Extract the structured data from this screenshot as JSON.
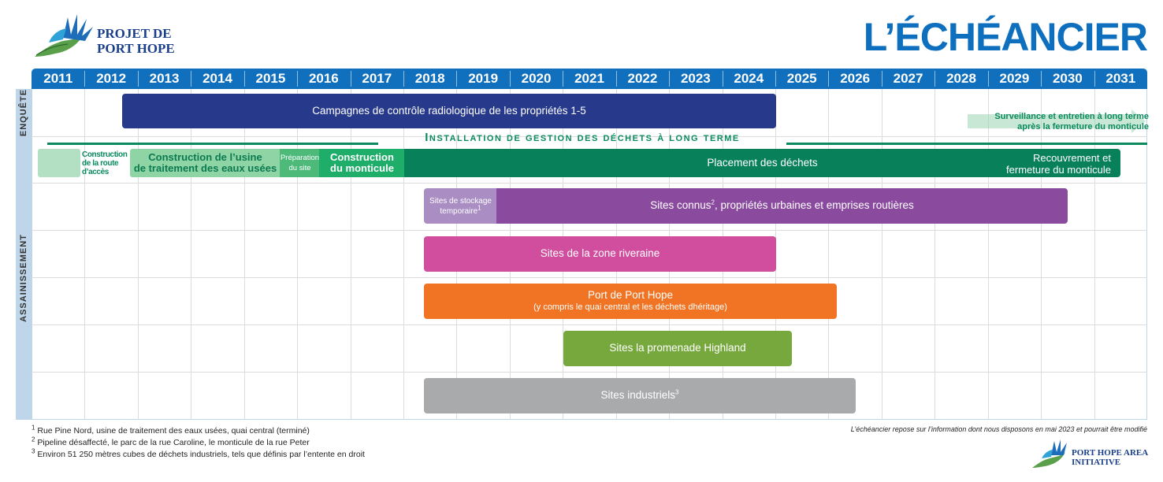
{
  "header": {
    "title": "L’ÉCHÉANCIER",
    "logo_line1": "PROJET DE",
    "logo_line2": "PORT HOPE"
  },
  "chart_data": {
    "type": "table",
    "years": [
      "2011",
      "2012",
      "2013",
      "2014",
      "2015",
      "2016",
      "2017",
      "2018",
      "2019",
      "2020",
      "2021",
      "2022",
      "2023",
      "2024",
      "2025",
      "2026",
      "2027",
      "2028",
      "2029",
      "2030",
      "2031"
    ],
    "sections": [
      "ENQUÊTE",
      "ASSAINISSEMENT"
    ],
    "enquete": {
      "campaign_label": "Campagnes de contrôle radiologique de les propriétés 1-5",
      "surveillance_line1": "Surveillance et entretien à long terme",
      "surveillance_line2": "après la fermeture du monticule"
    },
    "facility": {
      "title": "Installation de gestion des déchets à long terme",
      "road_line1": "Construction",
      "road_line2": "de la route",
      "road_line3": "d’accès",
      "plant_line1": "Construction de l’usine",
      "plant_line2": "de traitement des eaux usées",
      "prep_line1": "Préparation",
      "prep_line2": "du site",
      "mound_line1": "Construction",
      "mound_line2": "du monticule",
      "placement": "Placement des déchets",
      "cover_line1": "Recouvrement et",
      "cover_line2": "fermeture du monticule"
    },
    "cleanup": {
      "temp_line1": "Sites de stockage",
      "temp_line2": "temporaire",
      "temp_sup": "1",
      "known_a": "Sites connus",
      "known_sup": "2",
      "known_b": ", propriétés urbaines et emprises routières",
      "riverain": "Sites de la zone riveraine",
      "port": "Port de Port Hope",
      "port_sub": "(y compris le quai central et les déchets dhéritage)",
      "highland": "Sites la promenade Highland",
      "industrial": "Sites industriels",
      "industrial_sup": "3"
    }
  },
  "footnotes": {
    "n1": "1",
    "t1": "Rue Pine Nord, usine de traitement des eaux usées, quai central (terminé)",
    "n2": "2",
    "t2": "Pipeline désaffecté, le parc de la rue Caroline, le monticule de la rue Peter",
    "n3": "3",
    "t3": "Environ 51 250 mètres cubes de déchets industriels, tels que définis par l’entente en droit",
    "disclaimer": "L’échéancier repose sur l’information dont nous disposons en mai 2023 et pourrait être modifié"
  },
  "footer_logo": {
    "line1": "PORT HOPE AREA",
    "line2": "INITIATIVE"
  },
  "colors": {
    "header_blue": "#1170bd",
    "navy": "#27398a",
    "teal": "#08805a",
    "light_green": "#7ecb97",
    "purple": "#8a4b9f",
    "light_purple": "#a98dc3",
    "pink": "#d14d9e",
    "orange": "#f07423",
    "olive": "#77a83d",
    "gray": "#a8aaac"
  }
}
